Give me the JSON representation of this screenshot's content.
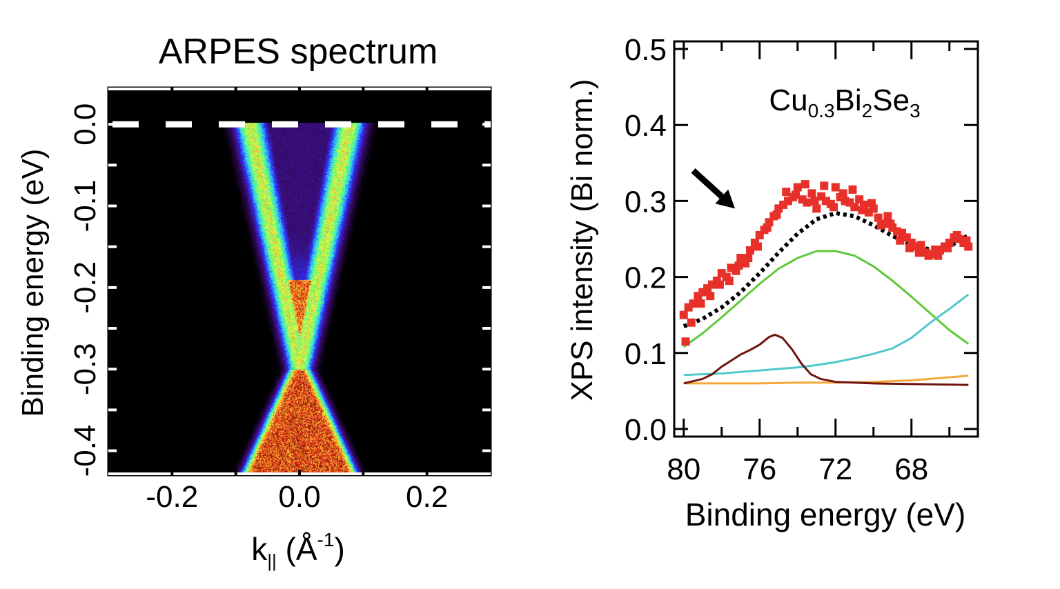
{
  "chart_data": [
    {
      "type": "heatmap",
      "title": "ARPES spectrum",
      "xlabel_parts": [
        "k",
        "||",
        " (Å",
        "-1",
        ")"
      ],
      "ylabel": "Binding energy (eV)",
      "xlim": [
        -0.3,
        0.3
      ],
      "ylim": [
        -0.43,
        0.045
      ],
      "xticks": [
        -0.2,
        0.0,
        0.2
      ],
      "xtick_labels": [
        "-0.2",
        "0.0",
        "0.2"
      ],
      "yticks": [
        0.0,
        -0.1,
        -0.2,
        -0.3,
        -0.4
      ],
      "ytick_labels": [
        "0.0",
        "-0.1",
        "-0.2",
        "-0.3",
        "-0.4"
      ],
      "colormap": [
        "#000000",
        "#3a0a6a",
        "#3030ff",
        "#30e0ff",
        "#60ff60",
        "#ffff40",
        "#ff4020",
        "#600000"
      ],
      "features": {
        "fermi_level_eV": 0.0,
        "fermi_level_style": "white dashed",
        "dirac_point_eV": -0.3,
        "dirac_point_k": 0.0,
        "surface_state_k_at_fermi_level": 0.078,
        "bulk_conduction_band_min_eV": -0.19,
        "lower_cone_half_width_at_bottom": 0.075
      }
    },
    {
      "type": "scatter",
      "annotation_parts": [
        "Cu",
        "0.3",
        "Bi",
        "2",
        "Se",
        "3"
      ],
      "xlabel": "Binding energy (eV)",
      "ylabel": "XPS intensity (Bi norm.)",
      "xlim": [
        80.5,
        64.5
      ],
      "ylim": [
        -0.01,
        0.51
      ],
      "xticks": [
        80,
        76,
        72,
        68
      ],
      "xtick_labels": [
        "80",
        "76",
        "72",
        "68"
      ],
      "yticks": [
        0.0,
        0.1,
        0.2,
        0.3,
        0.4,
        0.5
      ],
      "ytick_labels": [
        "0.0",
        "0.1",
        "0.2",
        "0.3",
        "0.4",
        "0.5"
      ],
      "arrow": {
        "from": [
          79.5,
          0.34
        ],
        "to": [
          77.3,
          0.29
        ],
        "color": "#000000"
      },
      "series": [
        {
          "kind": "markers",
          "color": "#e8302a",
          "x": [
            80.0,
            79.9,
            79.75,
            79.5,
            79.25,
            79.0,
            78.75,
            78.5,
            78.25,
            78.0,
            77.75,
            77.5,
            77.25,
            77.0,
            76.75,
            76.5,
            76.25,
            76.0,
            75.75,
            75.5,
            75.25,
            75.0,
            74.75,
            74.5,
            74.25,
            74.0,
            73.75,
            73.5,
            73.25,
            73.0,
            72.75,
            72.5,
            72.25,
            72.0,
            71.75,
            71.5,
            71.25,
            71.0,
            70.75,
            70.5,
            70.25,
            70.0,
            69.75,
            69.5,
            69.25,
            69.0,
            68.75,
            68.5,
            68.25,
            68.0,
            67.75,
            67.5,
            67.25,
            67.0,
            66.75,
            66.5,
            66.25,
            66.0,
            65.75,
            65.5,
            65.25,
            65.0,
            79.6,
            79.1,
            78.6,
            78.1,
            77.6,
            77.1,
            76.6,
            76.1,
            75.6,
            75.1,
            74.6,
            74.1,
            73.6,
            73.1,
            72.6,
            72.1,
            71.6,
            71.1,
            70.6,
            70.1,
            69.6,
            69.1,
            68.6,
            68.1,
            67.6,
            67.1,
            66.6,
            66.1,
            65.6,
            65.1
          ],
          "y": [
            0.15,
            0.115,
            0.16,
            0.165,
            0.175,
            0.18,
            0.185,
            0.19,
            0.195,
            0.205,
            0.2,
            0.212,
            0.208,
            0.225,
            0.218,
            0.235,
            0.245,
            0.255,
            0.262,
            0.272,
            0.28,
            0.29,
            0.295,
            0.3,
            0.305,
            0.318,
            0.302,
            0.298,
            0.31,
            0.29,
            0.306,
            0.3,
            0.296,
            0.318,
            0.305,
            0.3,
            0.298,
            0.292,
            0.302,
            0.295,
            0.285,
            0.29,
            0.278,
            0.27,
            0.28,
            0.265,
            0.26,
            0.258,
            0.252,
            0.245,
            0.24,
            0.242,
            0.232,
            0.23,
            0.236,
            0.235,
            0.24,
            0.245,
            0.252,
            0.25,
            0.245,
            0.24,
            0.14,
            0.165,
            0.175,
            0.19,
            0.195,
            0.215,
            0.225,
            0.24,
            0.265,
            0.282,
            0.312,
            0.308,
            0.322,
            0.3,
            0.32,
            0.292,
            0.31,
            0.315,
            0.288,
            0.297,
            0.268,
            0.27,
            0.248,
            0.238,
            0.232,
            0.228,
            0.228,
            0.238,
            0.255,
            0.248
          ]
        },
        {
          "kind": "fit",
          "color": "#000000",
          "style": "dotted",
          "x": [
            80,
            79,
            78,
            77,
            76,
            75,
            74,
            73,
            72,
            71,
            70,
            69,
            68,
            67,
            66,
            65
          ],
          "y": [
            0.135,
            0.145,
            0.16,
            0.18,
            0.205,
            0.232,
            0.257,
            0.276,
            0.284,
            0.28,
            0.268,
            0.254,
            0.242,
            0.236,
            0.24,
            0.255
          ]
        },
        {
          "kind": "component",
          "color": "#5cc83a",
          "x": [
            80,
            79,
            78,
            77,
            76,
            75,
            74,
            73,
            72,
            71,
            70,
            69,
            68,
            67,
            66,
            65
          ],
          "y": [
            0.108,
            0.126,
            0.147,
            0.169,
            0.191,
            0.211,
            0.225,
            0.234,
            0.234,
            0.228,
            0.214,
            0.195,
            0.174,
            0.152,
            0.13,
            0.112
          ]
        },
        {
          "kind": "component",
          "color": "#4fc8cc",
          "x": [
            80,
            79,
            78,
            77,
            76,
            75,
            74,
            73,
            72,
            71,
            70,
            69,
            68,
            67,
            66,
            65
          ],
          "y": [
            0.071,
            0.072,
            0.073,
            0.075,
            0.077,
            0.079,
            0.081,
            0.084,
            0.088,
            0.093,
            0.099,
            0.106,
            0.12,
            0.14,
            0.158,
            0.177
          ]
        },
        {
          "kind": "component",
          "color": "#f5a83a",
          "x": [
            80,
            78,
            76,
            74,
            72,
            70,
            68,
            67,
            66,
            65
          ],
          "y": [
            0.06,
            0.06,
            0.06,
            0.061,
            0.061,
            0.062,
            0.064,
            0.066,
            0.068,
            0.07
          ]
        },
        {
          "kind": "component",
          "color": "#6e1410",
          "x": [
            80,
            79,
            78.5,
            78,
            77,
            76.5,
            76,
            75.5,
            75.2,
            74.8,
            74.3,
            73.8,
            73.3,
            72.8,
            72,
            70,
            65
          ],
          "y": [
            0.06,
            0.066,
            0.072,
            0.082,
            0.098,
            0.104,
            0.111,
            0.121,
            0.124,
            0.12,
            0.105,
            0.086,
            0.072,
            0.066,
            0.062,
            0.06,
            0.058
          ]
        }
      ]
    }
  ]
}
